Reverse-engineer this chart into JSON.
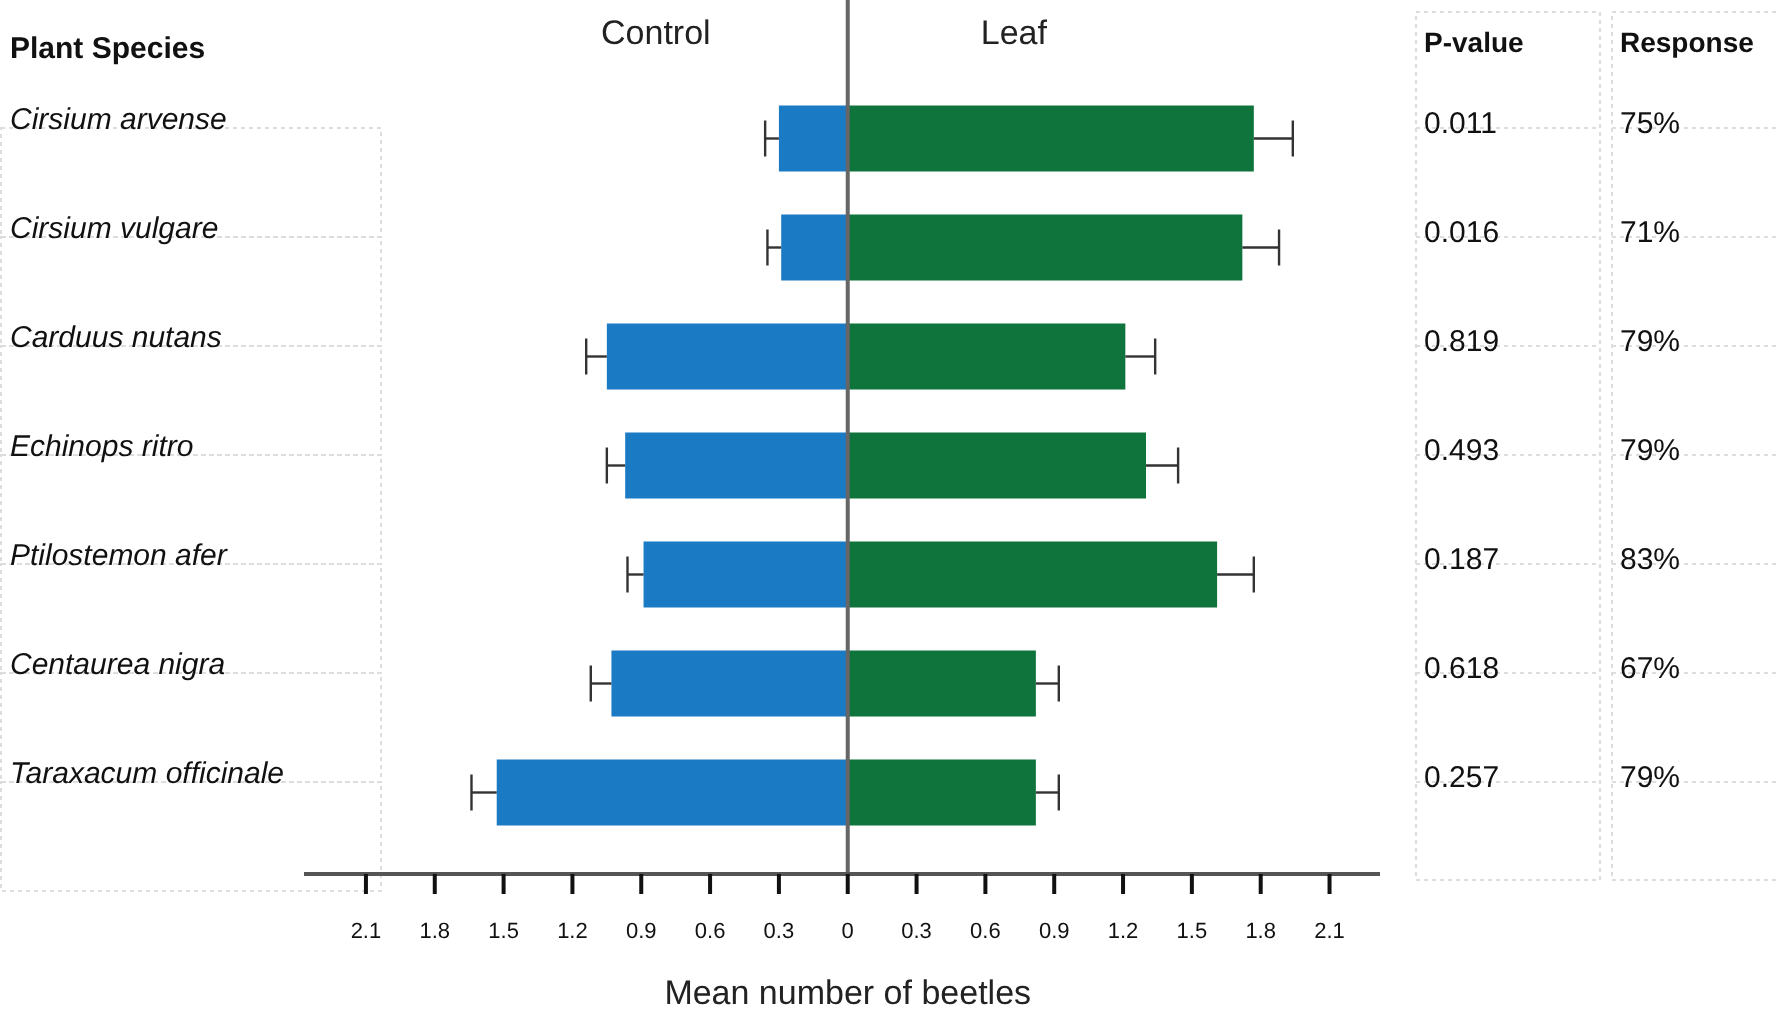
{
  "chart_data": {
    "type": "bar",
    "orientation": "horizontal",
    "ylabel": "Plant Species",
    "xlabel": "Mean number of beetles",
    "categories": [
      "Cirsium arvense",
      "Cirsium vulgare",
      "Carduus nutans",
      "Echinops ritro",
      "Ptilostemon afer",
      "Centaurea nigra",
      "Taraxacum officinale"
    ],
    "series": [
      {
        "name": "Control",
        "color": "#1a7ac4",
        "values": [
          -0.3,
          -0.29,
          -1.05,
          -0.97,
          -0.89,
          -1.03,
          -1.53
        ],
        "errors": [
          0.06,
          0.06,
          0.09,
          0.08,
          0.07,
          0.09,
          0.11
        ]
      },
      {
        "name": "Leaf",
        "color": "#0f743b",
        "values": [
          1.77,
          1.72,
          1.21,
          1.3,
          1.61,
          0.82,
          0.82
        ],
        "errors": [
          0.17,
          0.16,
          0.13,
          0.14,
          0.16,
          0.1,
          0.1
        ]
      }
    ],
    "xlim": [
      -2.37,
      2.32
    ],
    "xticks": [
      {
        "value": -2.1,
        "label": "2.1"
      },
      {
        "value": -1.8,
        "label": "1.8"
      },
      {
        "value": -1.5,
        "label": "1.5"
      },
      {
        "value": -1.2,
        "label": "1.2"
      },
      {
        "value": -0.9,
        "label": "0.9"
      },
      {
        "value": -0.6,
        "label": "0.6"
      },
      {
        "value": -0.3,
        "label": "0.3"
      },
      0,
      0.3,
      0.6,
      0.9,
      1.2,
      1.5,
      1.8,
      2.1
    ],
    "legend": false,
    "stacked": true,
    "annotations": [
      "P-value",
      "0.011",
      "0.016",
      "0.819",
      "0.493",
      "0.187",
      "0.618",
      "0.257",
      "Response",
      "75%",
      "71%",
      "79%",
      "79%",
      "83%",
      "67%",
      "79%"
    ]
  }
}
